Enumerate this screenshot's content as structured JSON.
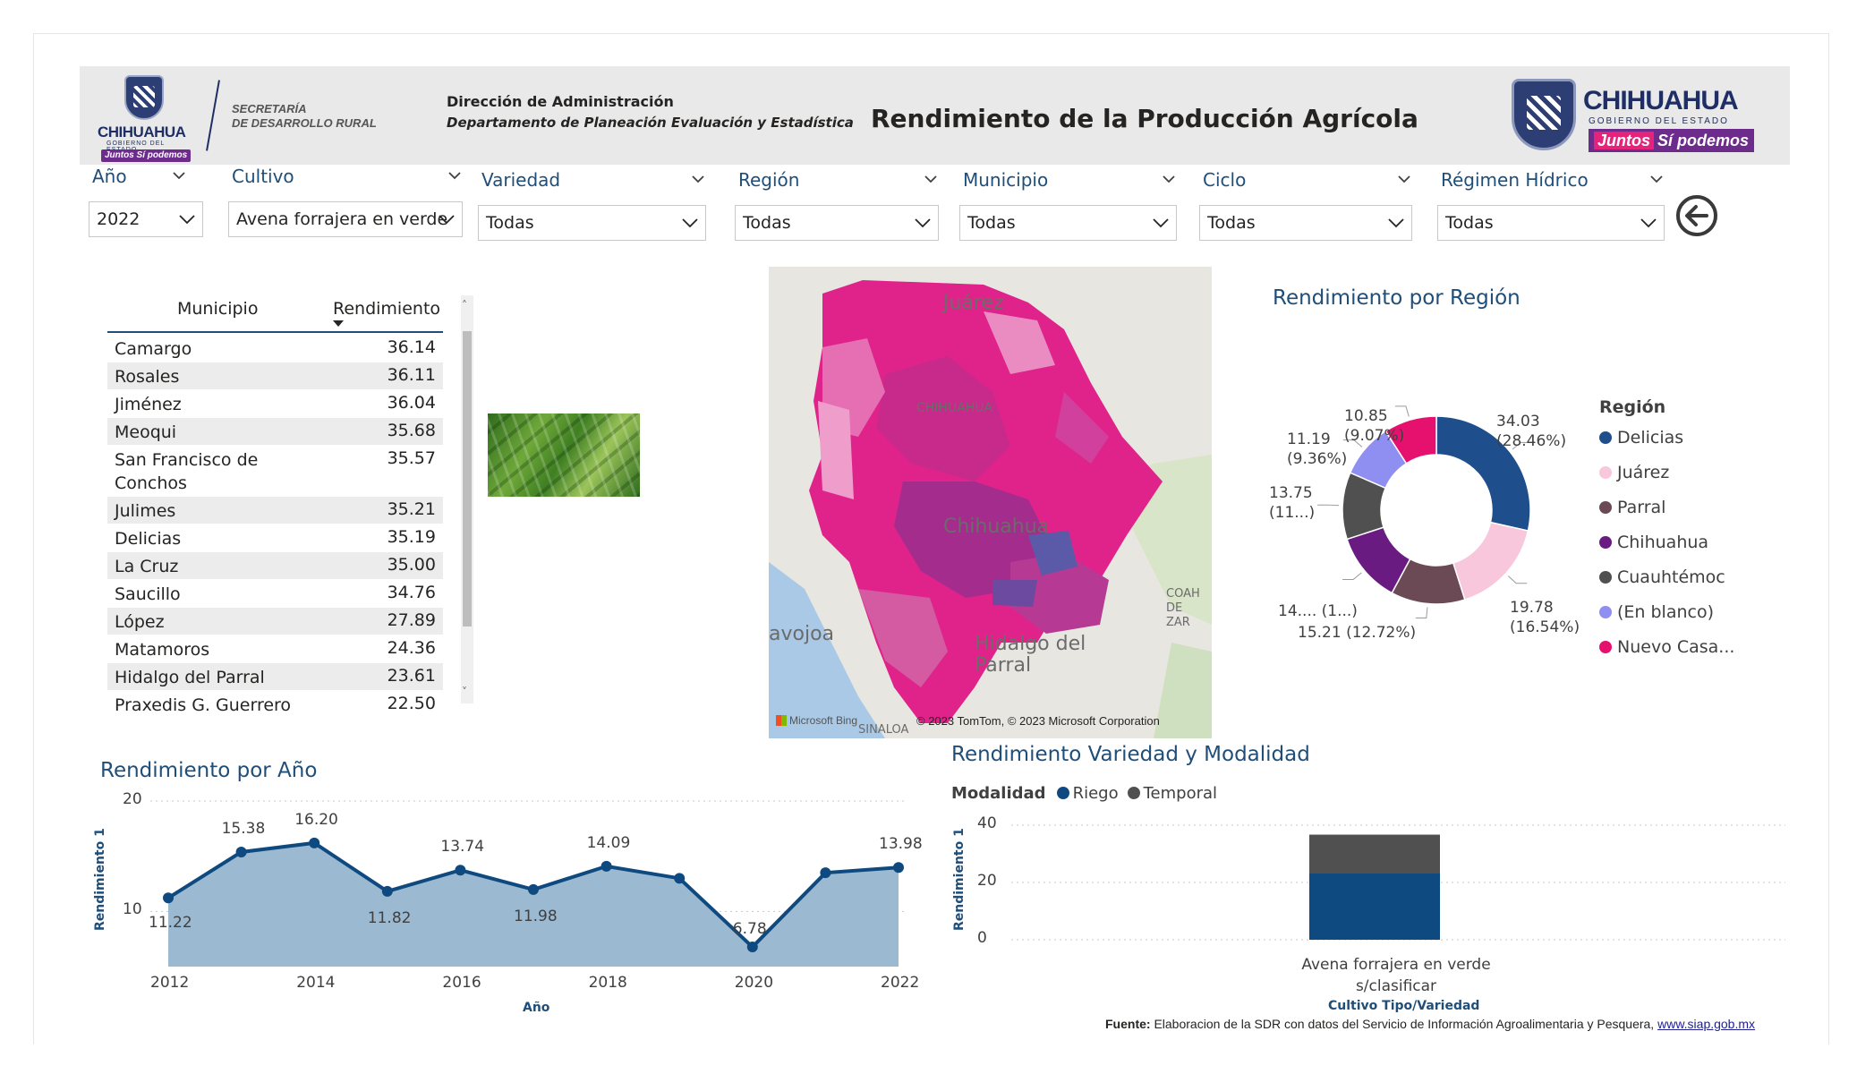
{
  "header": {
    "logo_left": {
      "word": "CHIHUAHUA",
      "sub": "GOBIERNO DEL ESTADO",
      "juntos": "Juntos Sí podemos"
    },
    "secretaria": [
      "SECRETARÍA",
      "DE DESARROLLO RURAL"
    ],
    "direccion": "Dirección de Administración",
    "departamento": "Departamento de Planeación Evaluación y Estadística",
    "title": "Rendimiento de la Producción Agrícola",
    "logo_right": {
      "word": "CHIHUAHUA",
      "sub": "GOBIERNO DEL ESTADO",
      "juntos1": "Juntos",
      "juntos2": "Sí podemos"
    }
  },
  "slicers": [
    {
      "label": "Año",
      "value": "2022"
    },
    {
      "label": "Cultivo",
      "value": "Avena forrajera en verde"
    },
    {
      "label": "Variedad",
      "value": "Todas"
    },
    {
      "label": "Región",
      "value": "Todas"
    },
    {
      "label": "Municipio",
      "value": "Todas"
    },
    {
      "label": "Ciclo",
      "value": "Todas"
    },
    {
      "label": "Régimen Hídrico",
      "value": "Todas"
    }
  ],
  "table": {
    "columns": [
      "Municipio",
      "Rendimiento"
    ],
    "rows": [
      {
        "name": "Camargo",
        "value": "36.14"
      },
      {
        "name": "Rosales",
        "value": "36.11"
      },
      {
        "name": "Jiménez",
        "value": "36.04"
      },
      {
        "name": "Meoqui",
        "value": "35.68"
      },
      {
        "name": "San Francisco de Conchos",
        "value": "35.57"
      },
      {
        "name": "Julimes",
        "value": "35.21"
      },
      {
        "name": "Delicias",
        "value": "35.19"
      },
      {
        "name": "La Cruz",
        "value": "35.00"
      },
      {
        "name": "Saucillo",
        "value": "34.76"
      },
      {
        "name": "López",
        "value": "27.89"
      },
      {
        "name": "Matamoros",
        "value": "24.36"
      },
      {
        "name": "Hidalgo del Parral",
        "value": "23.61"
      },
      {
        "name": "Praxedis G. Guerrero",
        "value": "22.50"
      }
    ]
  },
  "map": {
    "labels": {
      "juarez": "Juárez",
      "chihuahua_state": "CHIHUAHUA",
      "chihuahua_city": "Chihuahua",
      "parral": "Hidalgo del Parral",
      "navojoa": "avojoa",
      "sinaloa": "SINALOA",
      "coahuila": "COAH DE ZAR"
    },
    "bing": "Microsoft Bing",
    "credit": "© 2023 TomTom, © 2023 Microsoft Corporation"
  },
  "region_chart": {
    "title": "Rendimiento por Región",
    "legend_title": "Región",
    "labels": [
      {
        "text": "34.03 (28.46%)"
      },
      {
        "text": "19.78 (16.54%)"
      },
      {
        "text": "15.21 (12.72%)"
      },
      {
        "text": "14.... (1...)"
      },
      {
        "text": "13.75 (11...)"
      },
      {
        "text": "11.19 (9.36%)"
      },
      {
        "text": "10.85 (9.07%)"
      }
    ],
    "legend": [
      "Delicias",
      "Juárez",
      "Parral",
      "Chihuahua",
      "Cuauhtémoc",
      "(En blanco)",
      "Nuevo Casa..."
    ]
  },
  "year_chart": {
    "title": "Rendimiento por Año",
    "xlabel": "Año",
    "ylabel": "Rendimiento 1",
    "yticks": [
      "20",
      "10"
    ],
    "xticks": [
      "2012",
      "2014",
      "2016",
      "2018",
      "2020",
      "2022"
    ],
    "point_labels": [
      "11.22",
      "15.38",
      "16.20",
      "11.82",
      "13.74",
      "11.98",
      "14.09",
      "6.78",
      "13.98"
    ]
  },
  "variety_chart": {
    "title": "Rendimiento Variedad y Modalidad",
    "legend_title": "Modalidad",
    "legend": [
      "Riego",
      "Temporal"
    ],
    "ylabel": "Rendimiento 1",
    "xlabel": "Cultivo Tipo/Variedad",
    "yticks": [
      "40",
      "20",
      "0"
    ],
    "category": "Avena forrajera en verde s/clasificar"
  },
  "fuente": {
    "label": "Fuente:",
    "text": " Elaboracion de la SDR con datos del Servicio de Información Agroalimentaria y Pesquera, ",
    "link": "www.siap.gob.mx"
  },
  "chart_data": [
    {
      "type": "pie",
      "title": "Rendimiento por Región",
      "categories": [
        "Delicias",
        "Juárez",
        "Parral",
        "Chihuahua",
        "Cuauhtémoc",
        "(En blanco)",
        "Nuevo Casa..."
      ],
      "values": [
        34.03,
        19.78,
        15.21,
        14.5,
        13.75,
        11.19,
        10.85
      ],
      "colors": [
        "#1f4e8c",
        "#f9c7dc",
        "#6b4a55",
        "#6a1b82",
        "#505050",
        "#8f8ff2",
        "#e6116e"
      ],
      "legend": "right"
    },
    {
      "type": "area",
      "title": "Rendimiento por Año",
      "xlabel": "Año",
      "ylabel": "Rendimiento 1",
      "x": [
        2012,
        2013,
        2014,
        2015,
        2016,
        2017,
        2018,
        2019,
        2020,
        2021,
        2022
      ],
      "values": [
        11.22,
        15.38,
        16.2,
        11.82,
        13.74,
        11.98,
        14.09,
        13.0,
        6.78,
        13.5,
        13.98
      ],
      "ylim": [
        5,
        20
      ],
      "colors": {
        "line": "#0e4a7f",
        "fill": "#9bb9d1"
      }
    },
    {
      "type": "bar",
      "title": "Rendimiento Variedad y Modalidad",
      "xlabel": "Cultivo Tipo/Variedad",
      "ylabel": "Rendimiento 1",
      "categories": [
        "Avena forrajera en verde s/clasificar"
      ],
      "series": [
        {
          "name": "Riego",
          "values": [
            23.3
          ],
          "color": "#0e4a7f"
        },
        {
          "name": "Temporal",
          "values": [
            13.4
          ],
          "color": "#505050"
        }
      ],
      "ylim": [
        0,
        40
      ],
      "stacked": true
    }
  ]
}
